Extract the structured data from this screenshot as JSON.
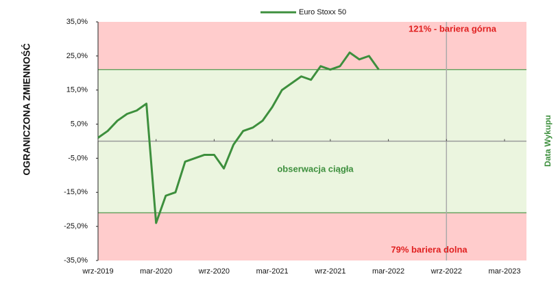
{
  "chart_data": {
    "type": "line",
    "legend_label": "Euro Stoxx 50",
    "y_axis_label": "OGRANICZONA ZMIENNOŚĆ",
    "right_label": "Data  Wykupu",
    "annotations": {
      "upper": "121% - bariera górna",
      "lower": "79% bariera dolna",
      "middle": "obserwacja ciągła"
    },
    "barriers": {
      "upper": 21,
      "lower": -21
    },
    "maturity": "2022-09",
    "ylim": [
      -35,
      35
    ],
    "yticks": [
      {
        "value": 35,
        "label": "35,0%"
      },
      {
        "value": 25,
        "label": "25,0%"
      },
      {
        "value": 15,
        "label": "15,0%"
      },
      {
        "value": 5,
        "label": "5,0%"
      },
      {
        "value": -5,
        "label": "-5,0%"
      },
      {
        "value": -15,
        "label": "-15,0%"
      },
      {
        "value": -25,
        "label": "-25,0%"
      },
      {
        "value": -35,
        "label": "-35,0%"
      }
    ],
    "xticks": [
      {
        "value": "2019-09",
        "label": "wrz-2019"
      },
      {
        "value": "2020-03",
        "label": "mar-2020"
      },
      {
        "value": "2020-09",
        "label": "wrz-2020"
      },
      {
        "value": "2021-03",
        "label": "mar-2021"
      },
      {
        "value": "2021-09",
        "label": "wrz-2021"
      },
      {
        "value": "2022-03",
        "label": "mar-2022"
      },
      {
        "value": "2022-09",
        "label": "wrz-2022"
      },
      {
        "value": "2023-03",
        "label": "mar-2023"
      }
    ],
    "series": [
      {
        "name": "Euro Stoxx 50",
        "color": "#3d8f3d",
        "x": [
          "2019-09",
          "2019-10",
          "2019-11",
          "2019-12",
          "2020-01",
          "2020-02",
          "2020-03",
          "2020-04",
          "2020-05",
          "2020-06",
          "2020-07",
          "2020-08",
          "2020-09",
          "2020-10",
          "2020-11",
          "2020-12",
          "2021-01",
          "2021-02",
          "2021-03",
          "2021-04",
          "2021-05",
          "2021-06",
          "2021-07",
          "2021-08",
          "2021-09",
          "2021-10",
          "2021-11",
          "2021-12",
          "2022-01",
          "2022-02"
        ],
        "values": [
          1,
          3,
          6,
          8,
          9,
          11,
          -24,
          -16,
          -15,
          -6,
          -5,
          -4,
          -4,
          -8,
          -1,
          3,
          4,
          6,
          10,
          15,
          17,
          19,
          18,
          22,
          21,
          22,
          26,
          24,
          25,
          21
        ]
      }
    ]
  }
}
